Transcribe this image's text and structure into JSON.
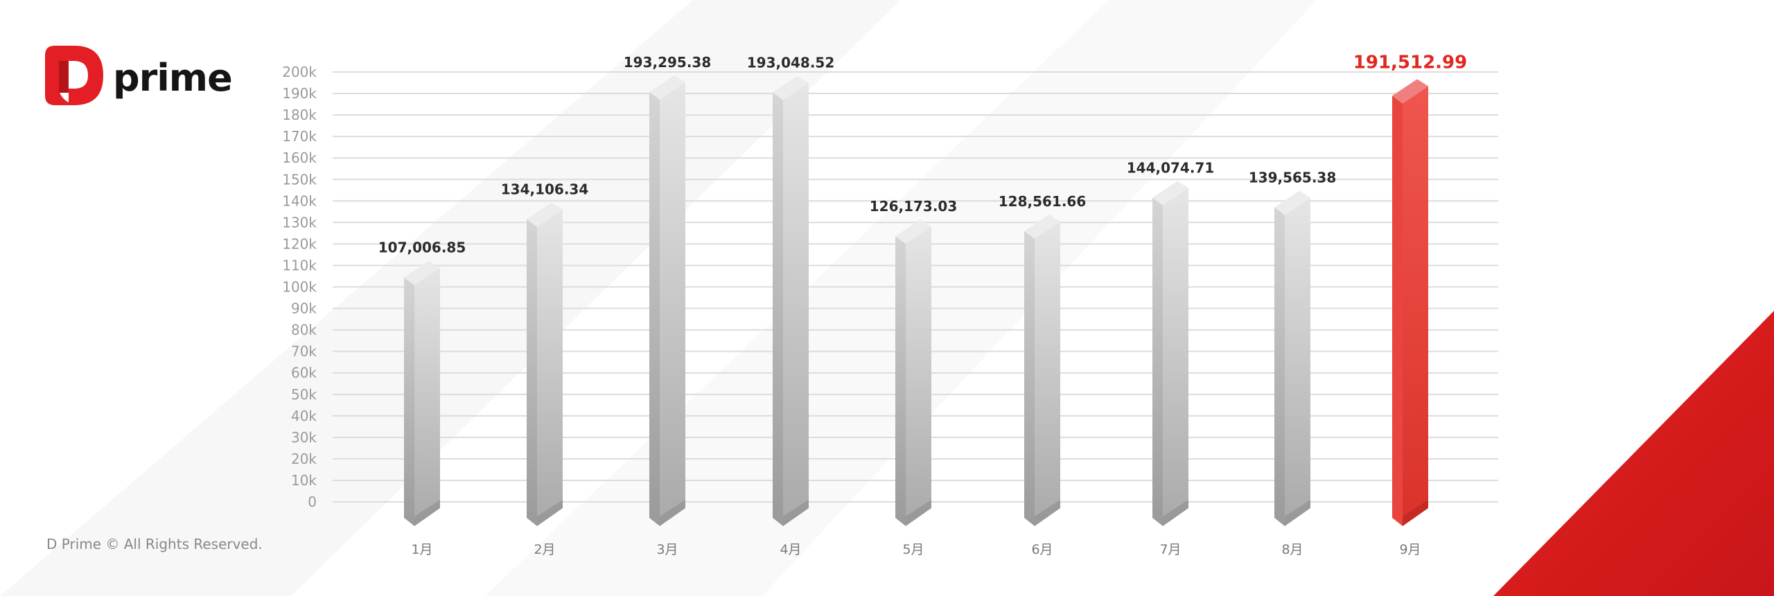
{
  "brand": {
    "logo_text": "prime",
    "copyright": "D Prime © All Rights Reserved."
  },
  "colors": {
    "bar": "#c9c9c9",
    "highlight": "#ee4b45",
    "highlight_label": "#e2271f",
    "accent_triangle": "#e3201c"
  },
  "chart_data": {
    "type": "bar",
    "categories": [
      "1月",
      "2月",
      "3月",
      "4月",
      "5月",
      "6月",
      "7月",
      "8月",
      "9月"
    ],
    "values": [
      107006.85,
      134106.34,
      193295.38,
      193048.52,
      126173.03,
      128561.66,
      144074.71,
      139565.38,
      191512.99
    ],
    "data_labels": [
      "107,006.85",
      "134,106.34",
      "193,295.38",
      "193,048.52",
      "126,173.03",
      "128,561.66",
      "144,074.71",
      "139,565.38",
      "191,512.99"
    ],
    "highlight_index": 8,
    "yticks": [
      "0",
      "10k",
      "20k",
      "30k",
      "40k",
      "50k",
      "60k",
      "70k",
      "80k",
      "90k",
      "100k",
      "110k",
      "120k",
      "130k",
      "140k",
      "150k",
      "160k",
      "170k",
      "180k",
      "190k",
      "200k"
    ],
    "ylim": [
      0,
      200000
    ],
    "grid": true,
    "style": "3d-bar"
  }
}
